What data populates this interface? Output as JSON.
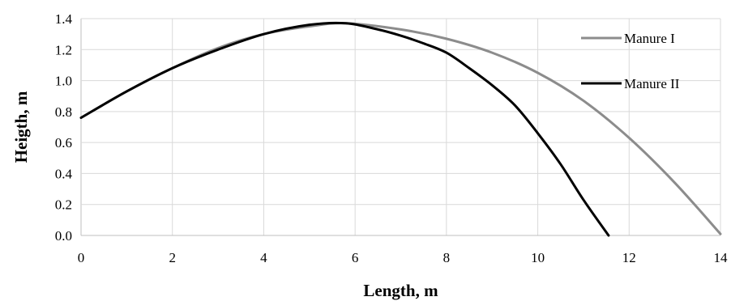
{
  "chart_data": {
    "type": "line",
    "title": "",
    "xlabel": "Length, m",
    "ylabel": "Heigth, m",
    "xlim": [
      0,
      14
    ],
    "ylim": [
      0,
      1.4
    ],
    "xticks": [
      "0",
      "2",
      "4",
      "6",
      "8",
      "10",
      "12",
      "14"
    ],
    "yticks": [
      "0.0",
      "0.2",
      "0.4",
      "0.6",
      "0.8",
      "1.0",
      "1.2",
      "1.4"
    ],
    "grid": true,
    "legend_position": "top-right",
    "series": [
      {
        "name": "Manure I",
        "color": "#8c8c8c",
        "x": [
          0,
          1,
          2,
          3,
          4,
          5,
          5.8,
          7,
          8,
          9,
          10,
          11,
          12,
          13,
          14
        ],
        "y": [
          0.76,
          0.93,
          1.08,
          1.21,
          1.3,
          1.35,
          1.37,
          1.33,
          1.27,
          1.18,
          1.05,
          0.87,
          0.63,
          0.34,
          0.01
        ]
      },
      {
        "name": "Manure II",
        "color": "#000000",
        "x": [
          0,
          1,
          2,
          3,
          4,
          5,
          5.8,
          6.5,
          7,
          7.5,
          8,
          8.5,
          9,
          9.5,
          10,
          10.5,
          11,
          11.55
        ],
        "y": [
          0.76,
          0.93,
          1.08,
          1.2,
          1.3,
          1.36,
          1.37,
          1.33,
          1.29,
          1.24,
          1.18,
          1.08,
          0.97,
          0.84,
          0.66,
          0.46,
          0.23,
          0.0
        ]
      }
    ]
  }
}
